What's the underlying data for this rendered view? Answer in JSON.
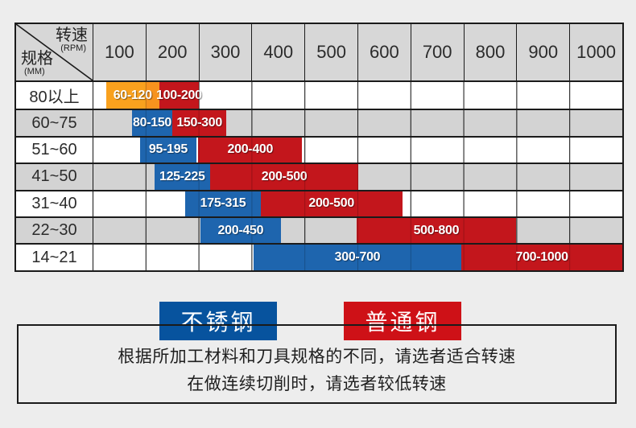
{
  "page": {
    "background": "#ededed"
  },
  "colors": {
    "orange": "#f9a11e",
    "orange_dark": "#f7931e",
    "blue": "#1e65ae",
    "red": "#c3161c",
    "legend_blue": "#07539e",
    "legend_red": "#ce1117",
    "grid": "#1b1b1b",
    "header_bg": "#d7d7d7",
    "row_alt_bg": "#d3d3d3"
  },
  "table": {
    "corner": {
      "top_label": "转速",
      "top_unit": "(RPM)",
      "bottom_label": "规格",
      "bottom_unit": "(MM)"
    },
    "columns": [
      "100",
      "200",
      "300",
      "400",
      "500",
      "600",
      "700",
      "800",
      "900",
      "1000"
    ],
    "rows": [
      {
        "spec": "80以上",
        "bars": [
          {
            "label": "60-120",
            "color": "orange",
            "left": 2.57,
            "width": 9.97
          },
          {
            "label": "100-200",
            "color": "red",
            "left": 12.54,
            "width": 7.55
          }
        ]
      },
      {
        "spec": "60~75",
        "bars": [
          {
            "label": "80-150",
            "color": "blue",
            "left": 7.4,
            "width": 7.7
          },
          {
            "label": "150-300",
            "color": "red",
            "left": 15.1,
            "width": 10.12
          }
        ]
      },
      {
        "spec": "51~60",
        "bars": [
          {
            "label": "95-195",
            "color": "blue",
            "left": 8.91,
            "width": 10.73
          },
          {
            "label": "200-400",
            "color": "red",
            "left": 19.94,
            "width": 19.64
          }
        ]
      },
      {
        "spec": "41~50",
        "bars": [
          {
            "label": "125-225",
            "color": "blue",
            "left": 11.63,
            "width": 10.57
          },
          {
            "label": "200-500",
            "color": "red",
            "left": 22.21,
            "width": 27.95
          }
        ]
      },
      {
        "spec": "31~40",
        "bars": [
          {
            "label": "175-315",
            "color": "blue",
            "left": 17.52,
            "width": 14.2
          },
          {
            "label": "200-500",
            "color": "red",
            "left": 31.72,
            "width": 26.74
          }
        ]
      },
      {
        "spec": "22~30",
        "bars": [
          {
            "label": "200-450",
            "color": "blue",
            "left": 20.39,
            "width": 15.11
          },
          {
            "label": "500-800",
            "color": "red",
            "left": 49.85,
            "width": 30.06
          }
        ]
      },
      {
        "spec": "14~21",
        "bars": [
          {
            "label": "300-700",
            "color": "blue",
            "left": 30.36,
            "width": 39.27
          },
          {
            "label": "700-1000",
            "color": "red",
            "left": 69.64,
            "width": 30.36
          }
        ]
      }
    ]
  },
  "legend": [
    {
      "label": "不锈钢",
      "color_key": "legend_blue"
    },
    {
      "label": "普通钢",
      "color_key": "legend_red"
    }
  ],
  "notes": [
    "根据所加工材料和刀具规格的不同，请选者适合转速",
    "在做连续切削时，请选者较低转速"
  ],
  "chart_data": {
    "type": "range-bar",
    "title": "",
    "x_axis_label": "转速(RPM)",
    "y_axis_label": "规格(MM)",
    "x_ticks": [
      100,
      200,
      300,
      400,
      500,
      600,
      700,
      800,
      900,
      1000
    ],
    "categories": [
      "80以上",
      "60~75",
      "51~60",
      "41~50",
      "31~40",
      "22~30",
      "14~21"
    ],
    "series": [
      {
        "name": "不锈钢",
        "color": "#1e65ae",
        "ranges": [
          [
            60,
            120
          ],
          [
            80,
            150
          ],
          [
            95,
            195
          ],
          [
            125,
            225
          ],
          [
            175,
            315
          ],
          [
            200,
            450
          ],
          [
            300,
            700
          ]
        ]
      },
      {
        "name": "普通钢",
        "color": "#c3161c",
        "ranges": [
          [
            100,
            200
          ],
          [
            150,
            300
          ],
          [
            200,
            400
          ],
          [
            200,
            500
          ],
          [
            200,
            500
          ],
          [
            500,
            800
          ],
          [
            700,
            1000
          ]
        ]
      }
    ],
    "annotations": [
      "first stainless-steel bar (80以上, 60-120) is rendered orange"
    ],
    "legend_position": "below",
    "grid": true
  }
}
